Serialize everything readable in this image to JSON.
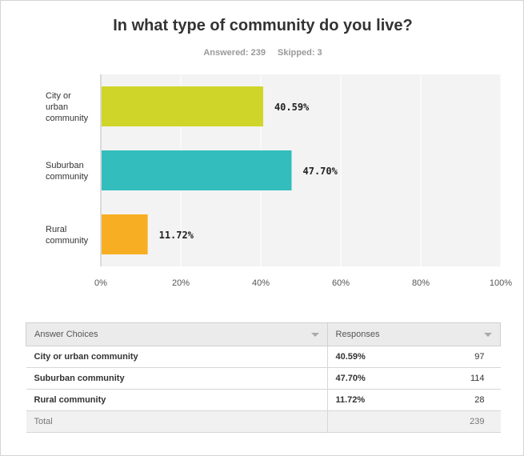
{
  "question": {
    "title": "In what type of community do you live?",
    "answered_label": "Answered: 239",
    "skipped_label": "Skipped: 3"
  },
  "chart_data": {
    "type": "bar",
    "orientation": "horizontal",
    "categories": [
      [
        "City or",
        "urban",
        "community"
      ],
      [
        "Suburban",
        "community"
      ],
      [
        "Rural",
        "community"
      ]
    ],
    "values": [
      40.59,
      47.7,
      11.72
    ],
    "value_labels": [
      "40.59%",
      "47.70%",
      "11.72%"
    ],
    "colors": [
      "#d0d52a",
      "#33bdbd",
      "#f8ae22"
    ],
    "xlim": [
      0,
      100
    ],
    "xticks": [
      "0%",
      "20%",
      "40%",
      "60%",
      "80%",
      "100%"
    ],
    "plot_background": "#f3f3f3",
    "grid": true,
    "title": "",
    "xlabel": "",
    "ylabel": ""
  },
  "table": {
    "headers": [
      "Answer Choices",
      "Responses"
    ],
    "rows": [
      {
        "choice": "City or urban community",
        "percent": "40.59%",
        "count": "97"
      },
      {
        "choice": "Suburban community",
        "percent": "47.70%",
        "count": "114"
      },
      {
        "choice": "Rural community",
        "percent": "11.72%",
        "count": "28"
      }
    ],
    "total_label": "Total",
    "total_count": "239"
  }
}
